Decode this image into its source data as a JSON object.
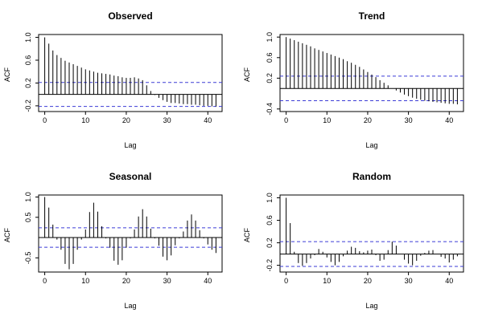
{
  "chart_data": [
    {
      "type": "bar",
      "title": "Observed",
      "xlabel": "Lag",
      "ylabel": "ACF",
      "xlim": [
        -1.5,
        43.5
      ],
      "ylim": [
        -0.3,
        1.05
      ],
      "xticks": [
        0,
        10,
        20,
        30,
        40
      ],
      "yticks": [
        -0.2,
        0.2,
        0.6,
        1.0
      ],
      "ytick_labels": [
        "-0.2",
        "0.2",
        "0.6",
        "1.0"
      ],
      "conf_band": 0.21,
      "lags": [
        0,
        1,
        2,
        3,
        4,
        5,
        6,
        7,
        8,
        9,
        10,
        11,
        12,
        13,
        14,
        15,
        16,
        17,
        18,
        19,
        20,
        21,
        22,
        23,
        24,
        25,
        26,
        27,
        28,
        29,
        30,
        31,
        32,
        33,
        34,
        35,
        36,
        37,
        38,
        39,
        40,
        41,
        42
      ],
      "values": [
        1.0,
        0.89,
        0.77,
        0.69,
        0.64,
        0.59,
        0.56,
        0.53,
        0.5,
        0.47,
        0.44,
        0.42,
        0.4,
        0.38,
        0.37,
        0.36,
        0.35,
        0.33,
        0.32,
        0.3,
        0.29,
        0.29,
        0.3,
        0.28,
        0.25,
        0.16,
        0.06,
        -0.01,
        -0.06,
        -0.1,
        -0.13,
        -0.15,
        -0.15,
        -0.16,
        -0.17,
        -0.17,
        -0.18,
        -0.18,
        -0.19,
        -0.2,
        -0.2,
        -0.21,
        -0.21
      ]
    },
    {
      "type": "bar",
      "title": "Trend",
      "xlabel": "Lag",
      "ylabel": "ACF",
      "xlim": [
        -1.5,
        43.5
      ],
      "ylim": [
        -0.45,
        1.05
      ],
      "xticks": [
        0,
        10,
        20,
        30,
        40
      ],
      "yticks": [
        -0.4,
        0.2,
        0.6,
        1.0
      ],
      "ytick_labels": [
        "-0.4",
        "0.2",
        "0.6",
        "1.0"
      ],
      "conf_band": 0.24,
      "lags": [
        0,
        1,
        2,
        3,
        4,
        5,
        6,
        7,
        8,
        9,
        10,
        11,
        12,
        13,
        14,
        15,
        16,
        17,
        18,
        19,
        20,
        21,
        22,
        23,
        24,
        25,
        26,
        27,
        28,
        29,
        30,
        31,
        32,
        33,
        34,
        35,
        36,
        37,
        38,
        39,
        40,
        41,
        42
      ],
      "values": [
        1.0,
        0.97,
        0.94,
        0.91,
        0.88,
        0.85,
        0.82,
        0.78,
        0.75,
        0.72,
        0.69,
        0.66,
        0.63,
        0.6,
        0.57,
        0.53,
        0.5,
        0.46,
        0.42,
        0.37,
        0.32,
        0.27,
        0.22,
        0.16,
        0.11,
        0.06,
        0.0,
        -0.04,
        -0.08,
        -0.12,
        -0.15,
        -0.18,
        -0.2,
        -0.22,
        -0.24,
        -0.25,
        -0.26,
        -0.27,
        -0.28,
        -0.29,
        -0.3,
        -0.3,
        -0.31
      ]
    },
    {
      "type": "bar",
      "title": "Seasonal",
      "xlabel": "Lag",
      "ylabel": "ACF",
      "xlim": [
        -1.5,
        43.5
      ],
      "ylim": [
        -0.85,
        1.05
      ],
      "xticks": [
        0,
        10,
        20,
        30,
        40
      ],
      "yticks": [
        -0.5,
        0.5,
        1.0
      ],
      "ytick_labels": [
        "-0.5",
        "0.5",
        "1.0"
      ],
      "conf_band": 0.24,
      "lags": [
        0,
        1,
        2,
        3,
        4,
        5,
        6,
        7,
        8,
        9,
        10,
        11,
        12,
        13,
        14,
        15,
        16,
        17,
        18,
        19,
        20,
        21,
        22,
        23,
        24,
        25,
        26,
        27,
        28,
        29,
        30,
        31,
        32,
        33,
        34,
        35,
        36,
        37,
        38,
        39,
        40,
        41,
        42
      ],
      "values": [
        1.0,
        0.74,
        0.32,
        -0.05,
        -0.3,
        -0.65,
        -0.78,
        -0.65,
        -0.3,
        -0.05,
        0.2,
        0.63,
        0.86,
        0.64,
        0.28,
        -0.02,
        -0.25,
        -0.57,
        -0.67,
        -0.56,
        -0.25,
        -0.02,
        0.2,
        0.52,
        0.7,
        0.52,
        0.22,
        -0.02,
        -0.2,
        -0.47,
        -0.56,
        -0.44,
        -0.19,
        -0.02,
        0.15,
        0.42,
        0.57,
        0.42,
        0.18,
        -0.02,
        -0.17,
        -0.3,
        -0.38
      ]
    },
    {
      "type": "bar",
      "title": "Random",
      "xlabel": "Lag",
      "ylabel": "ACF",
      "xlim": [
        -1.5,
        43.5
      ],
      "ylim": [
        -0.32,
        1.05
      ],
      "xticks": [
        0,
        10,
        20,
        30,
        40
      ],
      "yticks": [
        -0.2,
        0.2,
        0.6,
        1.0
      ],
      "ytick_labels": [
        "-0.2",
        "0.2",
        "0.6",
        "1.0"
      ],
      "conf_band": 0.22,
      "lags": [
        0,
        1,
        2,
        3,
        4,
        5,
        6,
        7,
        8,
        9,
        10,
        11,
        12,
        13,
        14,
        15,
        16,
        17,
        18,
        19,
        20,
        21,
        22,
        23,
        24,
        25,
        26,
        27,
        28,
        29,
        30,
        31,
        32,
        33,
        34,
        35,
        36,
        37,
        38,
        39,
        40,
        41,
        42
      ],
      "values": [
        1.0,
        0.55,
        0.04,
        -0.16,
        -0.21,
        -0.16,
        -0.08,
        -0.02,
        0.09,
        0.04,
        -0.06,
        -0.14,
        -0.2,
        -0.14,
        -0.04,
        0.06,
        0.13,
        0.11,
        0.05,
        0.03,
        0.06,
        0.08,
        -0.02,
        -0.12,
        -0.1,
        0.07,
        0.22,
        0.15,
        0.0,
        -0.1,
        -0.17,
        -0.2,
        -0.12,
        -0.03,
        0.02,
        0.06,
        0.07,
        0.0,
        -0.05,
        -0.08,
        -0.15,
        -0.1,
        -0.04
      ]
    }
  ]
}
